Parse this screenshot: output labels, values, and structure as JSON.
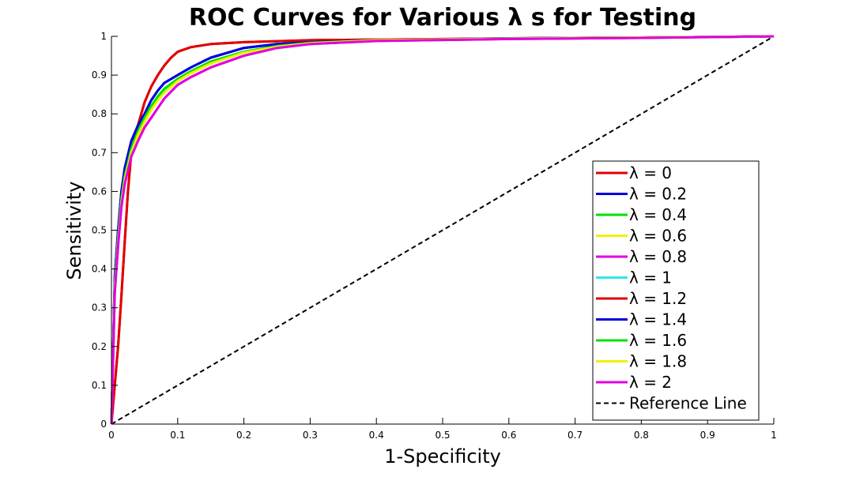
{
  "chart_data": {
    "type": "line",
    "title": "ROC Curves for Various λ s for Testing",
    "xlabel": "1-Specificity",
    "ylabel": "Sensitivity",
    "xlim": [
      0,
      1
    ],
    "ylim": [
      0,
      1
    ],
    "grid": false,
    "legend_position": "bottom-right",
    "xticks": [
      "0",
      "0.1",
      "0.2",
      "0.3",
      "0.4",
      "0.5",
      "0.6",
      "0.7",
      "0.8",
      "0.9",
      "1"
    ],
    "yticks": [
      "0",
      "0.1",
      "0.2",
      "0.3",
      "0.4",
      "0.5",
      "0.6",
      "0.7",
      "0.8",
      "0.9",
      "1"
    ],
    "series": [
      {
        "name": "λ = 0",
        "color": "#e00000",
        "x": [
          0,
          0.005,
          0.01,
          0.015,
          0.02,
          0.025,
          0.03,
          0.04,
          0.05,
          0.06,
          0.07,
          0.08,
          0.09,
          0.1,
          0.12,
          0.15,
          0.2,
          0.3,
          0.5,
          0.7,
          0.9,
          0.98,
          1
        ],
        "y": [
          0,
          0.1,
          0.2,
          0.33,
          0.47,
          0.6,
          0.7,
          0.77,
          0.83,
          0.87,
          0.9,
          0.925,
          0.945,
          0.96,
          0.972,
          0.98,
          0.985,
          0.99,
          0.993,
          0.996,
          0.998,
          1,
          1
        ]
      },
      {
        "name": "λ = 0.2",
        "color": "#0000e0",
        "x": [
          0,
          0.005,
          0.01,
          0.015,
          0.02,
          0.03,
          0.04,
          0.05,
          0.06,
          0.07,
          0.08,
          0.1,
          0.12,
          0.15,
          0.2,
          0.25,
          0.3,
          0.4,
          0.6,
          0.8,
          0.95,
          1
        ],
        "y": [
          0,
          0.38,
          0.5,
          0.6,
          0.66,
          0.73,
          0.77,
          0.8,
          0.835,
          0.86,
          0.88,
          0.9,
          0.92,
          0.945,
          0.97,
          0.98,
          0.985,
          0.99,
          0.995,
          0.997,
          0.999,
          1
        ]
      },
      {
        "name": "λ = 0.4",
        "color": "#00e000",
        "x": [
          0,
          0.005,
          0.01,
          0.015,
          0.02,
          0.03,
          0.04,
          0.05,
          0.06,
          0.07,
          0.08,
          0.1,
          0.12,
          0.15,
          0.2,
          0.25,
          0.3,
          0.4,
          0.6,
          0.8,
          0.95,
          1
        ],
        "y": [
          0,
          0.36,
          0.48,
          0.58,
          0.64,
          0.71,
          0.755,
          0.79,
          0.82,
          0.845,
          0.865,
          0.89,
          0.91,
          0.935,
          0.96,
          0.975,
          0.983,
          0.99,
          0.994,
          0.997,
          0.999,
          1
        ]
      },
      {
        "name": "λ = 0.6",
        "color": "#f0f000",
        "x": [
          0,
          0.005,
          0.01,
          0.015,
          0.02,
          0.03,
          0.04,
          0.05,
          0.06,
          0.07,
          0.08,
          0.1,
          0.12,
          0.15,
          0.2,
          0.25,
          0.3,
          0.4,
          0.6,
          0.8,
          0.95,
          1
        ],
        "y": [
          0,
          0.35,
          0.47,
          0.57,
          0.63,
          0.7,
          0.745,
          0.78,
          0.81,
          0.835,
          0.855,
          0.885,
          0.905,
          0.93,
          0.958,
          0.973,
          0.982,
          0.99,
          0.994,
          0.997,
          0.999,
          1
        ]
      },
      {
        "name": "λ = 0.8",
        "color": "#e000e0",
        "x": [
          0,
          0.005,
          0.01,
          0.015,
          0.02,
          0.03,
          0.04,
          0.05,
          0.06,
          0.07,
          0.08,
          0.1,
          0.12,
          0.15,
          0.2,
          0.25,
          0.3,
          0.4,
          0.6,
          0.8,
          0.95,
          1
        ],
        "y": [
          0,
          0.34,
          0.46,
          0.56,
          0.62,
          0.69,
          0.73,
          0.765,
          0.79,
          0.815,
          0.84,
          0.875,
          0.895,
          0.92,
          0.95,
          0.97,
          0.98,
          0.988,
          0.993,
          0.996,
          0.999,
          1
        ]
      },
      {
        "name": "λ = 1",
        "color": "#30e8e8",
        "x": [
          0,
          0.005,
          0.01,
          0.015,
          0.02,
          0.03,
          0.04,
          0.05,
          0.06,
          0.07,
          0.08,
          0.1,
          0.12,
          0.15,
          0.2,
          0.25,
          0.3,
          0.4,
          0.6,
          0.8,
          0.95,
          1
        ],
        "y": [
          0,
          0.35,
          0.47,
          0.57,
          0.635,
          0.705,
          0.75,
          0.785,
          0.815,
          0.84,
          0.86,
          0.888,
          0.908,
          0.933,
          0.96,
          0.974,
          0.983,
          0.99,
          0.994,
          0.997,
          0.999,
          1
        ]
      },
      {
        "name": "λ = 1.2",
        "color": "#e00000",
        "x": [
          0,
          0.005,
          0.01,
          0.015,
          0.02,
          0.025,
          0.03,
          0.04,
          0.05,
          0.06,
          0.07,
          0.08,
          0.09,
          0.1,
          0.12,
          0.15,
          0.2,
          0.3,
          0.5,
          0.7,
          0.9,
          0.98,
          1
        ],
        "y": [
          0,
          0.1,
          0.2,
          0.33,
          0.47,
          0.6,
          0.7,
          0.77,
          0.83,
          0.87,
          0.9,
          0.925,
          0.945,
          0.96,
          0.972,
          0.98,
          0.985,
          0.99,
          0.993,
          0.996,
          0.998,
          1,
          1
        ]
      },
      {
        "name": "λ = 1.4",
        "color": "#0000e0",
        "x": [
          0,
          0.005,
          0.01,
          0.015,
          0.02,
          0.03,
          0.04,
          0.05,
          0.06,
          0.07,
          0.08,
          0.1,
          0.12,
          0.15,
          0.2,
          0.25,
          0.3,
          0.4,
          0.6,
          0.8,
          0.95,
          1
        ],
        "y": [
          0,
          0.38,
          0.5,
          0.6,
          0.66,
          0.73,
          0.77,
          0.8,
          0.835,
          0.86,
          0.88,
          0.9,
          0.92,
          0.945,
          0.97,
          0.98,
          0.985,
          0.99,
          0.995,
          0.997,
          0.999,
          1
        ]
      },
      {
        "name": "λ = 1.6",
        "color": "#00e000",
        "x": [
          0,
          0.005,
          0.01,
          0.015,
          0.02,
          0.03,
          0.04,
          0.05,
          0.06,
          0.07,
          0.08,
          0.1,
          0.12,
          0.15,
          0.2,
          0.25,
          0.3,
          0.4,
          0.6,
          0.8,
          0.95,
          1
        ],
        "y": [
          0,
          0.36,
          0.48,
          0.58,
          0.64,
          0.71,
          0.755,
          0.79,
          0.82,
          0.845,
          0.865,
          0.89,
          0.91,
          0.935,
          0.96,
          0.975,
          0.983,
          0.99,
          0.994,
          0.997,
          0.999,
          1
        ]
      },
      {
        "name": "λ = 1.8",
        "color": "#f0f000",
        "x": [
          0,
          0.005,
          0.01,
          0.015,
          0.02,
          0.03,
          0.04,
          0.05,
          0.06,
          0.07,
          0.08,
          0.1,
          0.12,
          0.15,
          0.2,
          0.25,
          0.3,
          0.4,
          0.6,
          0.8,
          0.95,
          1
        ],
        "y": [
          0,
          0.35,
          0.47,
          0.57,
          0.63,
          0.7,
          0.745,
          0.78,
          0.81,
          0.835,
          0.855,
          0.885,
          0.905,
          0.93,
          0.958,
          0.973,
          0.982,
          0.99,
          0.994,
          0.997,
          0.999,
          1
        ]
      },
      {
        "name": "λ = 2",
        "color": "#e000e0",
        "x": [
          0,
          0.005,
          0.01,
          0.015,
          0.02,
          0.03,
          0.04,
          0.05,
          0.06,
          0.07,
          0.08,
          0.1,
          0.12,
          0.15,
          0.2,
          0.25,
          0.3,
          0.4,
          0.6,
          0.8,
          0.95,
          1
        ],
        "y": [
          0,
          0.34,
          0.46,
          0.56,
          0.62,
          0.69,
          0.73,
          0.765,
          0.79,
          0.815,
          0.84,
          0.875,
          0.895,
          0.92,
          0.95,
          0.97,
          0.98,
          0.988,
          0.993,
          0.996,
          0.999,
          1
        ]
      }
    ],
    "reference_line": {
      "name": "Reference Line",
      "color": "#000000",
      "style": "dashed",
      "x": [
        0,
        1
      ],
      "y": [
        0,
        1
      ]
    }
  }
}
